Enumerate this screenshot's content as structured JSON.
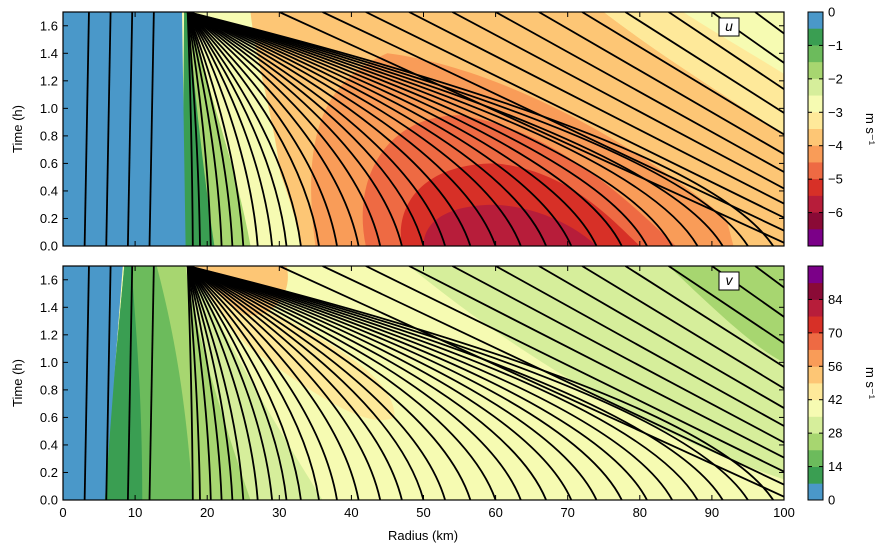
{
  "chart_data": [
    {
      "type": "contour",
      "panel_label": "u",
      "ylabel": "Time (h)",
      "xlim": [
        0,
        100
      ],
      "ylim": [
        0,
        1.7
      ],
      "yticks": [
        "0.0",
        "0.2",
        "0.4",
        "0.6",
        "0.8",
        "1.0",
        "1.2",
        "1.4",
        "1.6"
      ],
      "colorbar": {
        "label": "m s⁻¹",
        "ticks": [
          "0",
          "−1",
          "−2",
          "−3",
          "−4",
          "−5",
          "−6"
        ],
        "levels": [
          0,
          -0.5,
          -1,
          -1.5,
          -2,
          -2.5,
          -3,
          -3.5,
          -4,
          -4.5,
          -5,
          -5.5,
          -6,
          -6.5
        ],
        "colors": [
          "#4a98c9",
          "#3a9e52",
          "#6cbb5c",
          "#a7d670",
          "#d6ee9b",
          "#f6fbb2",
          "#fee99a",
          "#fdc675",
          "#f99c58",
          "#ee6a43",
          "#d73027",
          "#b71d3a",
          "#8a0a36",
          "#7b0088"
        ]
      },
      "regions": [
        {
          "level": -0.5,
          "color": "#3a9e52",
          "r0": 15.5,
          "r1": 19
        },
        {
          "level": -1.5,
          "color": "#a7d670",
          "r0": 19,
          "r1": 23
        },
        {
          "level": -2.5,
          "color": "#f6fbb2",
          "r0": 23,
          "r1": 33
        },
        {
          "level": -3.5,
          "color": "#fdc675",
          "description": "broad band 28-100 km"
        },
        {
          "level": -4.5,
          "color": "#ee6a43",
          "center": [
            58,
            0.65
          ]
        },
        {
          "level": -5.5,
          "color": "#b71d3a",
          "center": [
            62,
            0.2
          ]
        }
      ]
    },
    {
      "type": "contour",
      "panel_label": "v",
      "xlabel": "Radius (km)",
      "ylabel": "Time (h)",
      "xlim": [
        0,
        100
      ],
      "ylim": [
        0,
        1.7
      ],
      "xticks": [
        "0",
        "10",
        "20",
        "30",
        "40",
        "50",
        "60",
        "70",
        "80",
        "90",
        "100"
      ],
      "yticks": [
        "0.0",
        "0.2",
        "0.4",
        "0.6",
        "0.8",
        "1.0",
        "1.2",
        "1.4",
        "1.6"
      ],
      "colorbar": {
        "label": "m s⁻¹",
        "ticks": [
          "0",
          "14",
          "28",
          "42",
          "56",
          "70",
          "84"
        ],
        "levels": [
          0,
          7,
          14,
          21,
          28,
          35,
          42,
          49,
          56,
          63,
          70,
          77,
          84,
          91
        ],
        "colors": [
          "#4a98c9",
          "#3a9e52",
          "#6cbb5c",
          "#a7d670",
          "#d6ee9b",
          "#f6fbb2",
          "#fee99a",
          "#fdc675",
          "#f99c58",
          "#ee6a43",
          "#d73027",
          "#b71d3a",
          "#8a0a36",
          "#7b0088"
        ]
      },
      "regions": [
        {
          "level": 7,
          "color": "#3a9e52",
          "r0": 6,
          "r1": 12
        },
        {
          "level": 14,
          "color": "#6cbb5c",
          "r0": 12,
          "r1": 18
        },
        {
          "level": 21,
          "color": "#a7d670",
          "r0": 18,
          "r1": 25
        },
        {
          "level": 28,
          "color": "#d6ee9b",
          "r0": 25,
          "r1": 33
        },
        {
          "level": 35,
          "color": "#f6fbb2",
          "description": "broad band 30-100 km"
        },
        {
          "level": 42,
          "color": "#fee99a",
          "center": [
            30,
            1.2
          ]
        },
        {
          "level": 49,
          "color": "#fdc675",
          "center": [
            25,
            1.55
          ]
        }
      ]
    }
  ],
  "trajectories": {
    "inner_radii": [
      3,
      6,
      9,
      12
    ],
    "outer_radii_at_t0": [
      18,
      19,
      20.5,
      22,
      23.5,
      25,
      27,
      29,
      31,
      33,
      35.5,
      38,
      41,
      44,
      47,
      50,
      53,
      56.5,
      60,
      63.5,
      67,
      70.5,
      74,
      77.5,
      81,
      84.5,
      88,
      91.5,
      95,
      98.5
    ],
    "focus_point": [
      17.3,
      1.7
    ]
  }
}
